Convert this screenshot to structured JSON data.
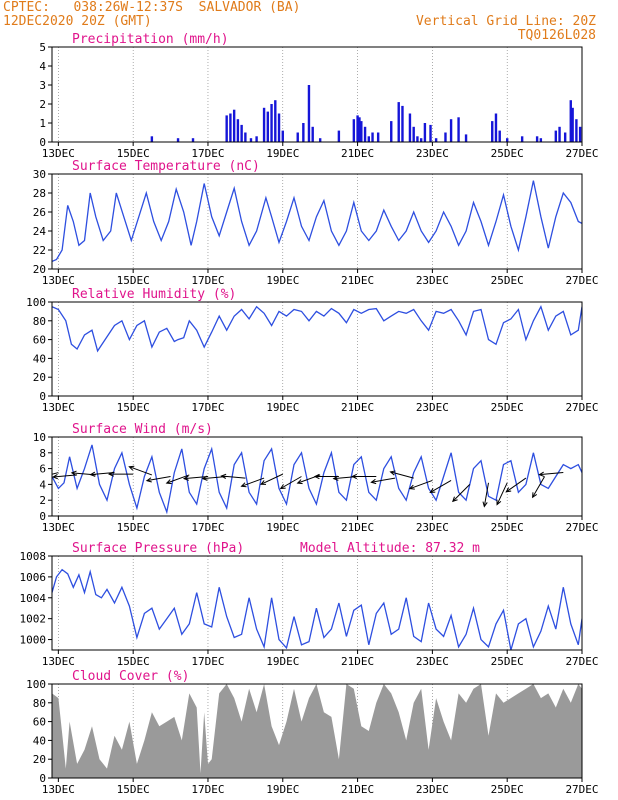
{
  "header": {
    "line1_left": "CPTEC:   038:26W-12:37S  SALVADOR (BA)",
    "line2_left": "12DEC2020 20Z (GMT)",
    "line1_right": "Vertical Grid Line: 20Z",
    "line2_right": "TQ0126L028",
    "header_color": "#e07b1a",
    "title_color": "#e0148c"
  },
  "x_axis": {
    "ticks": [
      "13DEC",
      "15DEC",
      "17DEC",
      "19DEC",
      "21DEC",
      "23DEC",
      "25DEC",
      "27DEC"
    ],
    "tick_days": [
      13,
      15,
      17,
      19,
      21,
      23,
      25,
      27
    ],
    "range_days": [
      12.83,
      27.0
    ]
  },
  "chart_data": [
    {
      "type": "bar",
      "id": "precip",
      "title": "Precipitation (mm/h)",
      "ylim": [
        0,
        5
      ],
      "yticks": [
        0,
        1,
        2,
        3,
        4,
        5
      ],
      "color": "#1515d8",
      "x_days": [
        15.5,
        16.2,
        16.6,
        17.5,
        17.6,
        17.7,
        17.8,
        17.9,
        18.0,
        18.15,
        18.3,
        18.5,
        18.6,
        18.7,
        18.8,
        18.9,
        19.0,
        19.4,
        19.55,
        19.7,
        19.8,
        20.0,
        20.5,
        20.9,
        21.0,
        21.05,
        21.1,
        21.2,
        21.3,
        21.4,
        21.55,
        21.9,
        22.1,
        22.2,
        22.4,
        22.5,
        22.6,
        22.7,
        22.8,
        22.95,
        23.1,
        23.35,
        23.5,
        23.7,
        23.9,
        24.6,
        24.7,
        24.8,
        25.0,
        25.4,
        25.8,
        25.9,
        26.3,
        26.4,
        26.55,
        26.7,
        26.75,
        26.85,
        26.95
      ],
      "values": [
        0.3,
        0.2,
        0.2,
        1.4,
        1.5,
        1.7,
        1.2,
        0.9,
        0.5,
        0.2,
        0.3,
        1.8,
        1.6,
        2.0,
        2.2,
        1.5,
        0.6,
        0.5,
        1.0,
        3.0,
        0.8,
        0.2,
        0.6,
        1.2,
        1.4,
        1.3,
        1.1,
        0.8,
        0.3,
        0.5,
        0.5,
        1.1,
        2.1,
        1.9,
        1.5,
        0.8,
        0.3,
        0.2,
        1.0,
        0.9,
        0.2,
        0.5,
        1.2,
        1.3,
        0.4,
        1.1,
        1.5,
        0.6,
        0.2,
        0.3,
        0.3,
        0.2,
        0.6,
        0.8,
        0.5,
        2.2,
        1.8,
        1.2,
        0.8
      ]
    },
    {
      "type": "line",
      "id": "temp",
      "title": "Surface Temperature (nC)",
      "ylim": [
        20,
        30
      ],
      "yticks": [
        20,
        22,
        24,
        26,
        28,
        30
      ],
      "color": "#2e4fe0",
      "series": [
        {
          "x_days": [
            12.83,
            12.95,
            13.1,
            13.25,
            13.4,
            13.55,
            13.7,
            13.85,
            14.0,
            14.2,
            14.4,
            14.55,
            14.75,
            14.95,
            15.15,
            15.35,
            15.55,
            15.75,
            15.95,
            16.15,
            16.35,
            16.55,
            16.7,
            16.9,
            17.1,
            17.3,
            17.5,
            17.7,
            17.9,
            18.1,
            18.3,
            18.55,
            18.7,
            18.9,
            19.1,
            19.3,
            19.5,
            19.7,
            19.9,
            20.1,
            20.3,
            20.5,
            20.7,
            20.9,
            21.1,
            21.3,
            21.5,
            21.7,
            21.9,
            22.1,
            22.3,
            22.5,
            22.7,
            22.9,
            23.1,
            23.3,
            23.5,
            23.7,
            23.9,
            24.1,
            24.3,
            24.5,
            24.7,
            24.9,
            25.1,
            25.3,
            25.5,
            25.7,
            25.9,
            26.1,
            26.3,
            26.5,
            26.7,
            26.9,
            27.0
          ],
          "values": [
            20.8,
            21.0,
            22.0,
            26.7,
            25.0,
            22.5,
            23.0,
            28.0,
            25.5,
            23.0,
            24.0,
            28.0,
            25.5,
            23.0,
            25.5,
            28.0,
            25.0,
            23.0,
            25.0,
            28.4,
            26.0,
            22.5,
            25.0,
            29.0,
            25.5,
            23.5,
            26.0,
            28.5,
            25.0,
            22.5,
            24.0,
            27.5,
            25.5,
            22.8,
            25.0,
            27.5,
            24.5,
            23.0,
            25.5,
            27.2,
            24.0,
            22.5,
            24.0,
            27.0,
            24.0,
            23.0,
            24.0,
            26.2,
            24.5,
            23.0,
            24.0,
            26.0,
            24.0,
            22.8,
            24.0,
            26.0,
            24.5,
            22.5,
            24.0,
            27.0,
            25.0,
            22.5,
            25.0,
            27.8,
            24.5,
            22.0,
            25.5,
            29.3,
            25.5,
            22.2,
            25.5,
            28.0,
            27.0,
            25.0,
            24.8
          ]
        }
      ]
    },
    {
      "type": "line",
      "id": "rh",
      "title": "Relative Humidity (%)",
      "ylim": [
        0,
        100
      ],
      "yticks": [
        0,
        20,
        40,
        60,
        80,
        100
      ],
      "color": "#2e4fe0",
      "series": [
        {
          "x_days": [
            12.83,
            13.0,
            13.2,
            13.35,
            13.5,
            13.7,
            13.9,
            14.05,
            14.25,
            14.5,
            14.7,
            14.9,
            15.1,
            15.3,
            15.5,
            15.7,
            15.9,
            16.1,
            16.2,
            16.35,
            16.5,
            16.7,
            16.9,
            17.1,
            17.3,
            17.5,
            17.7,
            17.9,
            18.1,
            18.3,
            18.5,
            18.7,
            18.9,
            19.1,
            19.3,
            19.5,
            19.7,
            19.9,
            20.1,
            20.3,
            20.5,
            20.7,
            20.9,
            21.1,
            21.3,
            21.5,
            21.7,
            21.9,
            22.1,
            22.3,
            22.5,
            22.7,
            22.9,
            23.1,
            23.3,
            23.5,
            23.7,
            23.9,
            24.1,
            24.3,
            24.5,
            24.7,
            24.9,
            25.1,
            25.3,
            25.5,
            25.7,
            25.9,
            26.1,
            26.3,
            26.5,
            26.7,
            26.9,
            27.0
          ],
          "values": [
            95,
            92,
            80,
            55,
            50,
            65,
            70,
            48,
            60,
            75,
            80,
            60,
            75,
            80,
            52,
            68,
            72,
            58,
            60,
            62,
            80,
            70,
            52,
            68,
            85,
            70,
            85,
            92,
            82,
            95,
            88,
            75,
            90,
            85,
            92,
            90,
            80,
            90,
            85,
            93,
            88,
            78,
            92,
            88,
            92,
            93,
            80,
            85,
            90,
            88,
            92,
            80,
            70,
            90,
            88,
            92,
            80,
            65,
            90,
            92,
            60,
            55,
            78,
            82,
            92,
            60,
            80,
            95,
            70,
            85,
            90,
            65,
            70,
            95
          ]
        }
      ]
    },
    {
      "type": "line",
      "id": "wind",
      "title": "Surface Wind (m/s)",
      "ylim": [
        0,
        10
      ],
      "yticks": [
        0,
        2,
        4,
        6,
        8,
        10
      ],
      "color": "#2e4fe0",
      "series": [
        {
          "x_days": [
            12.83,
            13.0,
            13.15,
            13.3,
            13.5,
            13.7,
            13.9,
            14.1,
            14.3,
            14.5,
            14.7,
            14.9,
            15.1,
            15.3,
            15.5,
            15.7,
            15.9,
            16.1,
            16.3,
            16.5,
            16.7,
            16.9,
            17.1,
            17.3,
            17.5,
            17.7,
            17.9,
            18.1,
            18.3,
            18.5,
            18.7,
            18.9,
            19.1,
            19.3,
            19.5,
            19.7,
            19.9,
            20.1,
            20.3,
            20.5,
            20.7,
            20.9,
            21.1,
            21.3,
            21.5,
            21.7,
            21.9,
            22.1,
            22.3,
            22.5,
            22.7,
            22.9,
            23.1,
            23.3,
            23.5,
            23.7,
            23.9,
            24.1,
            24.3,
            24.5,
            24.7,
            24.9,
            25.1,
            25.3,
            25.5,
            25.7,
            25.9,
            26.1,
            26.3,
            26.5,
            26.7,
            26.9,
            27.0
          ],
          "values": [
            5.0,
            3.5,
            4.2,
            7.5,
            3.5,
            6.0,
            9.0,
            4.0,
            2.0,
            6.0,
            8.0,
            4.0,
            1.0,
            5.0,
            7.5,
            3.0,
            0.5,
            5.5,
            8.5,
            3.0,
            1.5,
            6.0,
            8.5,
            3.0,
            1.0,
            6.5,
            8.0,
            3.0,
            1.5,
            7.0,
            8.5,
            3.5,
            1.5,
            6.5,
            8.0,
            3.5,
            1.5,
            5.5,
            8.0,
            3.0,
            2.0,
            6.5,
            7.5,
            3.0,
            2.0,
            6.0,
            7.5,
            3.5,
            2.0,
            5.5,
            7.5,
            3.5,
            2.0,
            5.0,
            8.0,
            3.0,
            2.0,
            6.0,
            7.0,
            2.5,
            2.0,
            6.5,
            7.0,
            3.0,
            4.0,
            8.0,
            4.0,
            3.5,
            5.0,
            6.5,
            6.0,
            6.5,
            5.5
          ]
        }
      ],
      "arrows": {
        "x_days": [
          13.0,
          13.5,
          14.0,
          14.5,
          15.0,
          15.5,
          16.0,
          16.5,
          17.0,
          17.5,
          18.0,
          18.5,
          19.0,
          19.5,
          20.0,
          20.5,
          21.0,
          21.5,
          22.0,
          22.5,
          23.0,
          23.5,
          24.0,
          24.5,
          25.0,
          25.5,
          26.0,
          26.5
        ],
        "speed": [
          5.5,
          5.2,
          5.2,
          5.5,
          5.3,
          5.2,
          5.0,
          5.2,
          5.0,
          5.0,
          4.8,
          4.8,
          5.3,
          5.0,
          5.2,
          5.0,
          5.0,
          5.0,
          4.8,
          4.8,
          4.5,
          4.5,
          4.0,
          4.2,
          4.2,
          4.8,
          5.0,
          5.5
        ],
        "angle_deg": [
          195,
          185,
          175,
          185,
          180,
          160,
          190,
          200,
          185,
          185,
          175,
          200,
          205,
          210,
          200,
          180,
          185,
          180,
          190,
          165,
          200,
          210,
          225,
          260,
          245,
          215,
          240,
          185
        ]
      }
    },
    {
      "type": "line",
      "id": "pressure",
      "title": "Surface Pressure (hPa)",
      "annotation": "Model Altitude: 87.32 m",
      "ylim": [
        999,
        1008
      ],
      "yticks": [
        1000,
        1002,
        1004,
        1006,
        1008
      ],
      "color": "#2e4fe0",
      "series": [
        {
          "x_days": [
            12.83,
            12.95,
            13.1,
            13.25,
            13.4,
            13.55,
            13.7,
            13.85,
            14.0,
            14.15,
            14.3,
            14.5,
            14.7,
            14.9,
            15.1,
            15.3,
            15.5,
            15.7,
            15.9,
            16.1,
            16.3,
            16.5,
            16.7,
            16.9,
            17.1,
            17.3,
            17.5,
            17.7,
            17.9,
            18.1,
            18.3,
            18.5,
            18.7,
            18.9,
            19.1,
            19.3,
            19.5,
            19.7,
            19.9,
            20.1,
            20.3,
            20.5,
            20.7,
            20.9,
            21.1,
            21.3,
            21.5,
            21.7,
            21.9,
            22.1,
            22.3,
            22.5,
            22.7,
            22.9,
            23.1,
            23.3,
            23.5,
            23.7,
            23.9,
            24.1,
            24.3,
            24.5,
            24.7,
            24.9,
            25.1,
            25.3,
            25.5,
            25.7,
            25.9,
            26.1,
            26.3,
            26.5,
            26.7,
            26.9,
            27.0
          ],
          "values": [
            1004.5,
            1006.0,
            1006.7,
            1006.3,
            1005.0,
            1006.2,
            1004.5,
            1006.5,
            1004.3,
            1004.0,
            1004.8,
            1003.5,
            1005.0,
            1003.2,
            1000.2,
            1002.5,
            1003.0,
            1001.0,
            1002.0,
            1003.0,
            1000.5,
            1001.5,
            1004.5,
            1001.5,
            1001.2,
            1005.0,
            1002.2,
            1000.2,
            1000.5,
            1004.0,
            1001.0,
            999.3,
            1004.0,
            1000.0,
            999.2,
            1002.2,
            999.5,
            999.8,
            1003.0,
            1000.2,
            1001.0,
            1003.5,
            1000.3,
            1002.8,
            1003.3,
            999.5,
            1002.5,
            1003.5,
            1000.5,
            1001.0,
            1004.0,
            1000.3,
            999.8,
            1003.5,
            1001.0,
            1000.3,
            1002.3,
            999.3,
            1000.5,
            1003.0,
            1000.0,
            999.3,
            1001.5,
            1002.8,
            999.0,
            1001.5,
            1002.0,
            999.3,
            1000.8,
            1003.2,
            1001.0,
            1005.0,
            1001.5,
            999.5,
            1002.0
          ]
        }
      ]
    },
    {
      "type": "area",
      "id": "cloud",
      "title": "Cloud Cover (%)",
      "ylim": [
        0,
        100
      ],
      "yticks": [
        0,
        20,
        40,
        60,
        80,
        100
      ],
      "color": "#9a9a9a",
      "series": [
        {
          "x_days": [
            12.83,
            13.0,
            13.1,
            13.2,
            13.3,
            13.5,
            13.7,
            13.9,
            14.1,
            14.3,
            14.5,
            14.7,
            14.9,
            15.1,
            15.3,
            15.5,
            15.7,
            15.9,
            16.1,
            16.3,
            16.5,
            16.7,
            16.8,
            16.9,
            17.0,
            17.1,
            17.3,
            17.5,
            17.7,
            17.9,
            18.1,
            18.3,
            18.5,
            18.7,
            18.9,
            19.1,
            19.3,
            19.5,
            19.7,
            19.9,
            20.1,
            20.3,
            20.5,
            20.7,
            20.9,
            21.1,
            21.3,
            21.5,
            21.7,
            21.9,
            22.1,
            22.3,
            22.5,
            22.7,
            22.9,
            23.1,
            23.3,
            23.5,
            23.7,
            23.9,
            24.1,
            24.3,
            24.5,
            24.7,
            24.9,
            25.1,
            25.3,
            25.5,
            25.7,
            25.9,
            26.1,
            26.3,
            26.5,
            26.7,
            26.9,
            27.0
          ],
          "values": [
            90,
            85,
            48,
            10,
            60,
            15,
            30,
            55,
            20,
            10,
            45,
            30,
            60,
            15,
            40,
            70,
            55,
            60,
            65,
            40,
            90,
            75,
            5,
            70,
            15,
            20,
            90,
            100,
            85,
            60,
            95,
            70,
            100,
            55,
            35,
            60,
            95,
            60,
            85,
            100,
            70,
            65,
            20,
            100,
            95,
            55,
            50,
            80,
            100,
            90,
            70,
            40,
            80,
            95,
            30,
            85,
            60,
            40,
            90,
            80,
            95,
            100,
            45,
            90,
            80,
            85,
            90,
            95,
            100,
            85,
            90,
            75,
            95,
            80,
            100,
            95
          ]
        }
      ]
    }
  ]
}
